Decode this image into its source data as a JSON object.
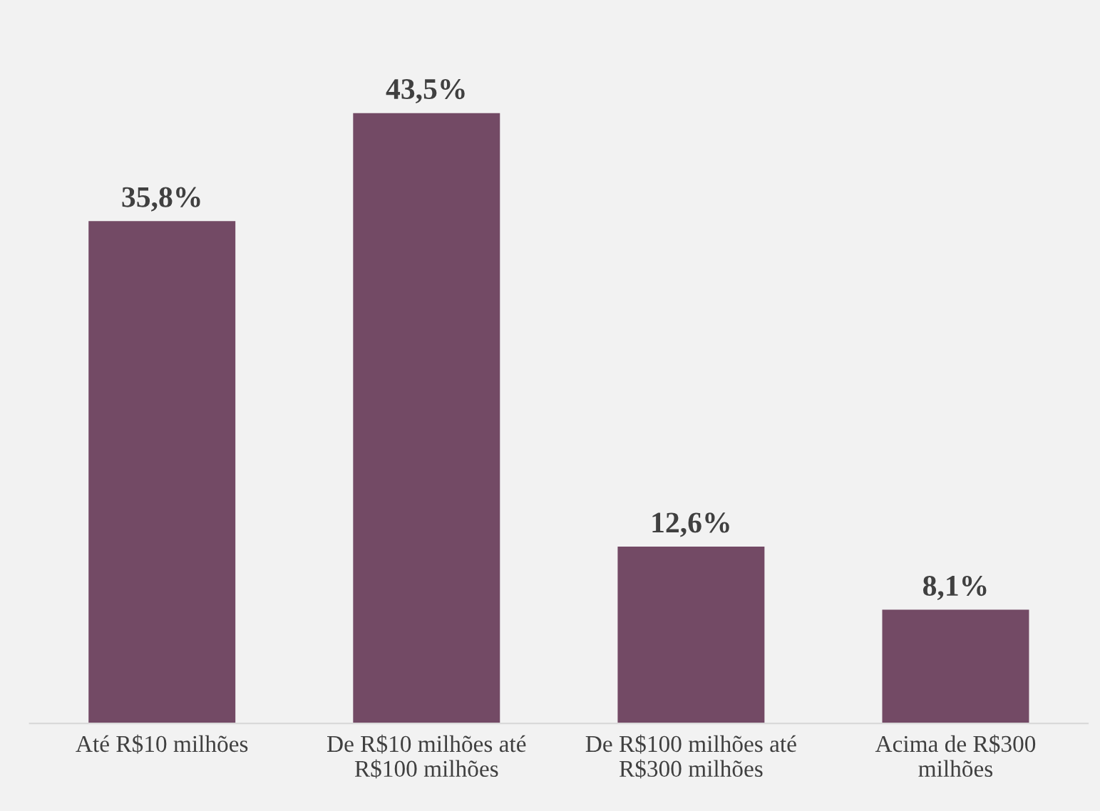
{
  "chart_data": {
    "type": "bar",
    "categories": [
      "Até R$10 milhões",
      "De R$10 milhões até\nR$100 milhões",
      "De R$100 milhões até\nR$300 milhões",
      "Acima de R$300\nmilhões"
    ],
    "values": [
      35.8,
      43.5,
      12.6,
      8.1
    ],
    "value_labels": [
      "35,8%",
      "43,5%",
      "12,6%",
      "8,1%"
    ],
    "color": "#734a65",
    "grid": false,
    "legend": false
  }
}
